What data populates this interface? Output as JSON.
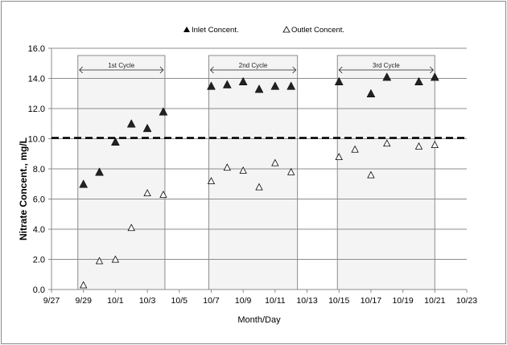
{
  "chart_data": {
    "type": "scatter",
    "title": "",
    "xlabel": "Month/Day",
    "ylabel": "Nitrate Concent.,  mg/L",
    "ylim": [
      0,
      16
    ],
    "y_ticks": [
      "0.0",
      "2.0",
      "4.0",
      "6.0",
      "8.0",
      "10.0",
      "12.0",
      "14.0",
      "16.0"
    ],
    "x_ticks": [
      "9/27",
      "9/29",
      "10/1",
      "10/3",
      "10/5",
      "10/7",
      "10/9",
      "10/11",
      "10/13",
      "10/15",
      "10/17",
      "10/19",
      "10/21",
      "10/23"
    ],
    "xlim": [
      "9/27",
      "10/23"
    ],
    "grid": "horizontal",
    "legend_position": "top",
    "reference_line": {
      "y": 10.0,
      "style": "dashed",
      "color": "#000000"
    },
    "cycles": [
      {
        "label": "1st Cycle",
        "start": "9/28",
        "end": "10/4"
      },
      {
        "label": "2nd Cycle",
        "start": "10/7",
        "end": "10/12"
      },
      {
        "label": "3rd Cycle",
        "start": "10/15",
        "end": "10/21"
      }
    ],
    "series": [
      {
        "name": "Inlet Concent.",
        "marker": "filled-triangle",
        "color": "#000000",
        "x": [
          "9/29",
          "9/30",
          "10/1",
          "10/2",
          "10/3",
          "10/4",
          "10/7",
          "10/8",
          "10/9",
          "10/10",
          "10/11",
          "10/12",
          "10/15",
          "10/17",
          "10/18",
          "10/20",
          "10/21"
        ],
        "y": [
          7.0,
          7.8,
          9.8,
          11.0,
          10.7,
          11.8,
          13.5,
          13.6,
          13.8,
          13.3,
          13.5,
          13.5,
          13.8,
          13.0,
          14.1,
          13.8,
          14.1
        ]
      },
      {
        "name": "Outlet Concent.",
        "marker": "open-triangle",
        "color": "#000000",
        "x": [
          "9/29",
          "9/30",
          "10/1",
          "10/2",
          "10/3",
          "10/4",
          "10/7",
          "10/8",
          "10/9",
          "10/10",
          "10/11",
          "10/12",
          "10/15",
          "10/16",
          "10/17",
          "10/18",
          "10/20",
          "10/21"
        ],
        "y": [
          0.3,
          1.9,
          2.0,
          4.1,
          6.4,
          6.3,
          7.2,
          8.1,
          7.9,
          6.8,
          8.4,
          7.8,
          8.8,
          9.3,
          7.6,
          9.7,
          9.5,
          9.6
        ]
      }
    ]
  }
}
